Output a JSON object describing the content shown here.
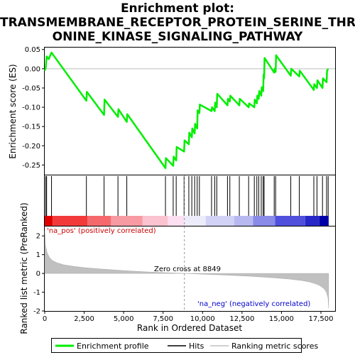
{
  "chart_data": {
    "type": "line",
    "title_lines": [
      "Enrichment plot:",
      "TRANSMEMBRANE_RECEPTOR_PROTEIN_SERINE_THRE",
      "ONINE_KINASE_SIGNALING_PATHWAY"
    ],
    "es_panel": {
      "ylabel": "Enrichment score (ES)",
      "ylim": [
        -0.275,
        0.055
      ],
      "yticks": [
        -0.25,
        -0.2,
        -0.15,
        -0.1,
        -0.05,
        0.0,
        0.05
      ],
      "ytick_labels": [
        "-0.25",
        "-0.20",
        "-0.15",
        "-0.10",
        "-0.05",
        "0.00",
        "0.05"
      ],
      "series": [
        {
          "name": "Enrichment profile",
          "color": "#00ee00",
          "x": [
            0,
            60,
            120,
            250,
            430,
            2640,
            2670,
            3760,
            3790,
            4640,
            4670,
            5200,
            5230,
            7650,
            7680,
            8140,
            8170,
            8330,
            8360,
            8830,
            8860,
            9130,
            9160,
            9320,
            9350,
            9500,
            9530,
            9660,
            9690,
            9800,
            9830,
            10570,
            10600,
            10770,
            10800,
            10900,
            10930,
            11580,
            11610,
            11730,
            11760,
            12330,
            12360,
            12920,
            12950,
            13280,
            13310,
            13440,
            13470,
            13560,
            13590,
            13720,
            13750,
            13840,
            13870,
            13900,
            13930,
            14540,
            14570,
            14630,
            14660,
            15590,
            15620,
            16130,
            16160,
            17050,
            17080,
            17250,
            17280,
            17600,
            17630,
            17860,
            17890,
            17960
          ],
          "y": [
            -0.005,
            0.002,
            0.032,
            0.025,
            0.042,
            -0.083,
            -0.06,
            -0.12,
            -0.08,
            -0.125,
            -0.105,
            -0.138,
            -0.118,
            -0.258,
            -0.232,
            -0.252,
            -0.228,
            -0.238,
            -0.203,
            -0.215,
            -0.186,
            -0.196,
            -0.166,
            -0.178,
            -0.155,
            -0.168,
            -0.143,
            -0.155,
            -0.108,
            -0.115,
            -0.093,
            -0.11,
            -0.1,
            -0.11,
            -0.088,
            -0.1,
            -0.065,
            -0.095,
            -0.078,
            -0.085,
            -0.07,
            -0.095,
            -0.078,
            -0.1,
            -0.09,
            -0.1,
            -0.08,
            -0.09,
            -0.07,
            -0.078,
            -0.058,
            -0.07,
            -0.048,
            -0.058,
            -0.015,
            -0.025,
            0.028,
            -0.01,
            0.0,
            -0.008,
            0.035,
            -0.018,
            0.0,
            -0.02,
            -0.005,
            -0.055,
            -0.04,
            -0.05,
            -0.03,
            -0.05,
            -0.025,
            -0.035,
            -0.005,
            0.0
          ]
        }
      ]
    },
    "hits": [
      60,
      120,
      430,
      2640,
      3760,
      4640,
      5200,
      7650,
      8140,
      8330,
      8830,
      9130,
      9320,
      9500,
      9660,
      9800,
      10570,
      10770,
      10900,
      11580,
      11730,
      12330,
      12920,
      13280,
      13440,
      13560,
      13720,
      13840,
      13900,
      14540,
      14630,
      15590,
      16130,
      17050,
      17250,
      17600,
      17860,
      17960
    ],
    "ranked_panel": {
      "ylabel": "Ranked list metric (PreRanked)",
      "ylim": [
        -2,
        2.5
      ],
      "yticks": [
        -2,
        -1,
        0,
        1,
        2
      ],
      "ytick_labels": [
        "-2",
        "-1",
        "0",
        "1",
        "2"
      ],
      "series": [
        {
          "name": "Ranking metric scores",
          "color": "#c0c0c0",
          "x": [
            0,
            50,
            150,
            300,
            500,
            800,
            1200,
            1800,
            2500,
            3500,
            5000,
            6500,
            8000,
            8849,
            10000,
            11500,
            13000,
            14500,
            15500,
            16300,
            16800,
            17200,
            17500,
            17700,
            17850,
            17950,
            17990
          ],
          "y": [
            2.25,
            1.5,
            1.1,
            0.85,
            0.68,
            0.56,
            0.46,
            0.38,
            0.31,
            0.24,
            0.15,
            0.08,
            0.03,
            0.0,
            -0.04,
            -0.09,
            -0.15,
            -0.23,
            -0.3,
            -0.38,
            -0.46,
            -0.56,
            -0.68,
            -0.82,
            -1.0,
            -1.3,
            -1.85
          ]
        }
      ],
      "zero_cross_label": "Zero cross at 8849",
      "zero_cross": 8849,
      "pos_label": "'na_pos' (positively correlated)",
      "neg_label": "'na_neg' (negatively correlated)"
    },
    "x_axis": {
      "xlabel": "Rank in Ordered Dataset",
      "xlim": [
        0,
        18400
      ],
      "xticks": [
        0,
        2500,
        5000,
        7500,
        10000,
        12500,
        15000,
        17500
      ],
      "xtick_labels": [
        "0",
        "2,500",
        "5,000",
        "7,500",
        "10,000",
        "12,500",
        "15,000",
        "17,500"
      ]
    },
    "heat_bar": {
      "segments": [
        {
          "from": 0,
          "to": 500,
          "color": "#e00000"
        },
        {
          "from": 500,
          "to": 2700,
          "color": "#f23a3a"
        },
        {
          "from": 2700,
          "to": 4200,
          "color": "#f5696d"
        },
        {
          "from": 4200,
          "to": 6200,
          "color": "#f79aa2"
        },
        {
          "from": 6200,
          "to": 7800,
          "color": "#fbc2cf"
        },
        {
          "from": 7800,
          "to": 8849,
          "color": "#fcdff0"
        },
        {
          "from": 8849,
          "to": 10200,
          "color": "#ececfb"
        },
        {
          "from": 10200,
          "to": 12000,
          "color": "#d2d2f6"
        },
        {
          "from": 12000,
          "to": 13200,
          "color": "#b8b8f0"
        },
        {
          "from": 13200,
          "to": 14600,
          "color": "#8a8ae8"
        },
        {
          "from": 14600,
          "to": 16500,
          "color": "#5050dc"
        },
        {
          "from": 16500,
          "to": 17400,
          "color": "#2828c8"
        },
        {
          "from": 17400,
          "to": 17990,
          "color": "#0000a8"
        }
      ]
    },
    "legend": {
      "placement": "bottom",
      "items": [
        {
          "label": "Enrichment profile",
          "color": "#00ee00"
        },
        {
          "label": "Hits",
          "color": "#000000"
        },
        {
          "label": "Ranking metric scores",
          "color": "#c0c0c0"
        }
      ]
    }
  }
}
